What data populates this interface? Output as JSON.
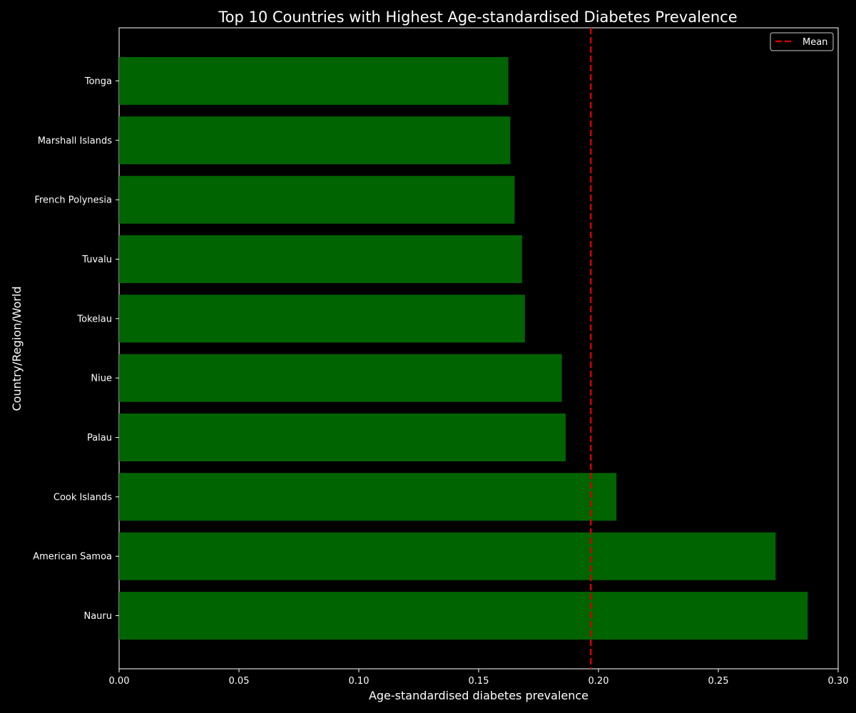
{
  "chart_data": {
    "type": "bar",
    "orientation": "horizontal",
    "title": "Top 10 Countries with Highest Age-standardised Diabetes Prevalence",
    "xlabel": "Age-standardised diabetes prevalence",
    "ylabel": "Country/Region/World",
    "xlim": [
      0,
      0.3
    ],
    "xticks": [
      "0.00",
      "0.05",
      "0.10",
      "0.15",
      "0.20",
      "0.25",
      "0.30"
    ],
    "categories": [
      "Nauru",
      "American Samoa",
      "Cook Islands",
      "Palau",
      "Niue",
      "Tokelau",
      "Tuvalu",
      "French Polynesia",
      "Marshall Islands",
      "Tonga"
    ],
    "values": [
      0.2873,
      0.2739,
      0.2075,
      0.1863,
      0.1847,
      0.1693,
      0.1681,
      0.165,
      0.1632,
      0.1624
    ],
    "mean_line": {
      "label": "Mean",
      "value": 0.1968
    },
    "legend": {
      "position": "upper right",
      "entries": [
        "Mean"
      ]
    },
    "bar_color": "#006400",
    "mean_color": "#d00000",
    "background": "#000000",
    "text_color": "#ffffff",
    "grid": false
  }
}
